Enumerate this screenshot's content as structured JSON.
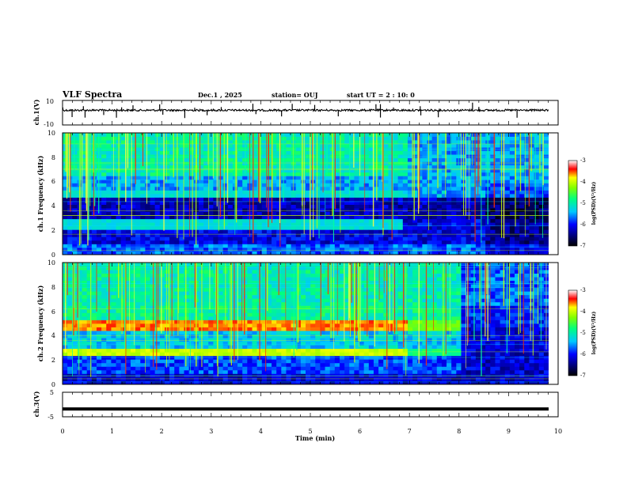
{
  "header": {
    "title": "VLF Spectra",
    "date": "Dec.1 , 2025",
    "station": "station= OUJ",
    "start_ut": "start UT = 2 : 10: 0"
  },
  "chart_data": [
    {
      "type": "line",
      "panel": "ch1-waveform",
      "ylabel": "ch.1(V)",
      "yticks": [
        "10",
        "-10"
      ],
      "ylim": [
        -10,
        10
      ],
      "xlim": [
        0,
        10
      ],
      "baseline_v": 2,
      "series": [
        {
          "name": "ch.1",
          "values_desc": "noisy trace near ~2 V with occasional spikes"
        }
      ]
    },
    {
      "type": "heatmap",
      "panel": "ch1-spectrogram",
      "ylabel": "ch.1 Frequency (kHz)",
      "yticks": [
        "0",
        "2",
        "4",
        "6",
        "8",
        "10"
      ],
      "ylim": [
        0,
        10
      ],
      "xlim": [
        0,
        10
      ],
      "bands_khz": [
        {
          "start_min": 0,
          "end_min": 7.0,
          "f_khz": 5.0,
          "level": 0.45
        },
        {
          "start_min": 0,
          "end_min": 6.9,
          "f_khz": 2.5,
          "level": 0.45
        }
      ],
      "colorbar": {
        "label": "log(PSD)(V²/Hz)",
        "ticks": [
          "-3",
          "-4",
          "-5",
          "-6",
          "-7"
        ],
        "range": [
          -7,
          -3
        ]
      }
    },
    {
      "type": "heatmap",
      "panel": "ch2-spectrogram",
      "ylabel": "ch.2 Frequency (kHz)",
      "yticks": [
        "0",
        "2",
        "4",
        "6",
        "8",
        "10"
      ],
      "ylim": [
        0,
        10
      ],
      "xlim": [
        0,
        10
      ],
      "bands_khz": [
        {
          "start_min": 0,
          "end_min": 7.0,
          "f_khz": 4.9,
          "level": 0.85
        },
        {
          "start_min": 7.0,
          "end_min": 8.0,
          "f_khz": 4.9,
          "level": 0.65
        },
        {
          "start_min": 0,
          "end_min": 7.0,
          "f_khz": 2.6,
          "level": 0.75
        },
        {
          "start_min": 7.0,
          "end_min": 8.0,
          "f_khz": 2.6,
          "level": 0.55
        }
      ],
      "colorbar": {
        "label": "log(PSD)(V²/Hz)",
        "ticks": [
          "-3",
          "-4",
          "-5",
          "-6",
          "-7"
        ],
        "range": [
          -7,
          -3
        ]
      }
    },
    {
      "type": "line",
      "panel": "ch3-waveform",
      "ylabel": "ch.3(V)",
      "yticks": [
        "5",
        "-5"
      ],
      "ylim": [
        -5,
        5
      ],
      "xlim": [
        0,
        10
      ],
      "series": [
        {
          "name": "ch.3",
          "constant_v": -1.8
        }
      ]
    }
  ],
  "xaxis": {
    "label": "Time (min)",
    "ticks": [
      "0",
      "1",
      "2",
      "3",
      "4",
      "5",
      "6",
      "7",
      "8",
      "9",
      "10"
    ]
  }
}
